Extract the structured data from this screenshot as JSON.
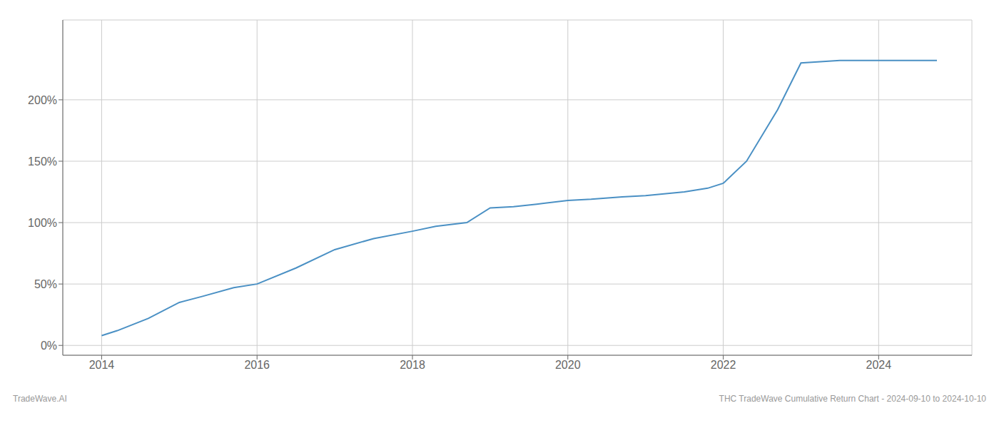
{
  "chart_data": {
    "type": "line",
    "title": "THC TradeWave Cumulative Return Chart - 2024-09-10 to 2024-10-10",
    "annotations": [
      "TradeWave.AI"
    ],
    "x": [
      2014.0,
      2014.2,
      2014.6,
      2015.0,
      2015.3,
      2015.7,
      2016.0,
      2016.5,
      2017.0,
      2017.5,
      2018.0,
      2018.3,
      2018.7,
      2019.0,
      2019.3,
      2019.6,
      2020.0,
      2020.3,
      2020.7,
      2021.0,
      2021.5,
      2021.8,
      2022.0,
      2022.3,
      2022.7,
      2023.0,
      2023.5,
      2024.0,
      2024.75
    ],
    "values": [
      8,
      12,
      22,
      35,
      40,
      47,
      50,
      63,
      78,
      87,
      93,
      97,
      100,
      112,
      113,
      115,
      118,
      119,
      121,
      122,
      125,
      128,
      132,
      150,
      192,
      230,
      232,
      232,
      232
    ],
    "color": "#4a90c4",
    "xlim": [
      2013.5,
      2025.2
    ],
    "ylim": [
      -8,
      265
    ],
    "xticks": [
      2014,
      2016,
      2018,
      2020,
      2022,
      2024
    ],
    "yticks": [
      {
        "value": 0,
        "label": "0%"
      },
      {
        "value": 50,
        "label": "50%"
      },
      {
        "value": 100,
        "label": "100%"
      },
      {
        "value": 150,
        "label": "150%"
      },
      {
        "value": 200,
        "label": "200%"
      }
    ],
    "grid": true
  }
}
